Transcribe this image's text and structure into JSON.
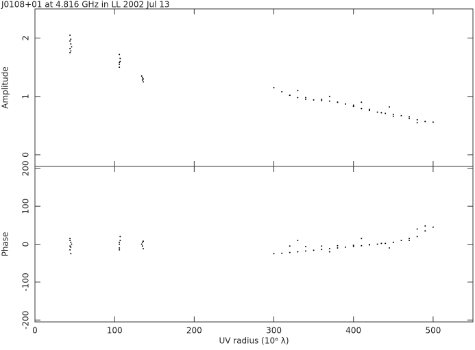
{
  "chart_data": [
    {
      "type": "scatter",
      "title": "J0108+01 at 4.816 GHz in LL  2002 Jul 13",
      "ylabel": "Amplitude",
      "color": "#000000",
      "xlim": [
        0,
        550
      ],
      "xticks": [
        0,
        100,
        200,
        300,
        400,
        500
      ],
      "ylim": [
        -0.2,
        2.5
      ],
      "yticks": [
        0,
        1,
        2
      ],
      "x": [
        44,
        44,
        45,
        45,
        44,
        46,
        45,
        44,
        106,
        106,
        107,
        106,
        106,
        107,
        135,
        135,
        136,
        136,
        134,
        300,
        310,
        320,
        330,
        340,
        350,
        360,
        370,
        380,
        390,
        400,
        410,
        420,
        430,
        440,
        450,
        460,
        470,
        480,
        490,
        500,
        320,
        340,
        360,
        380,
        400,
        420,
        435,
        450,
        470,
        490,
        330,
        370,
        410,
        445,
        480
      ],
      "values": [
        1.75,
        1.82,
        1.9,
        1.98,
        2.05,
        1.85,
        1.78,
        1.95,
        1.5,
        1.58,
        1.65,
        1.72,
        1.55,
        1.6,
        1.28,
        1.32,
        1.25,
        1.3,
        1.35,
        1.15,
        1.08,
        1.02,
        0.98,
        0.95,
        0.94,
        0.93,
        0.92,
        0.9,
        0.87,
        0.83,
        0.79,
        0.76,
        0.73,
        0.71,
        0.69,
        0.67,
        0.65,
        0.6,
        0.57,
        0.56,
        1.02,
        0.98,
        0.95,
        0.9,
        0.85,
        0.78,
        0.72,
        0.66,
        0.62,
        0.57,
        1.1,
        1.0,
        0.9,
        0.82,
        0.55
      ]
    },
    {
      "type": "scatter",
      "ylabel": "Phase",
      "xlabel": "UV radius  (10⁶ λ)",
      "color": "#000000",
      "xlim": [
        0,
        550
      ],
      "xticks": [
        0,
        100,
        200,
        300,
        400,
        500
      ],
      "ylim": [
        -205,
        205
      ],
      "yticks": [
        -200,
        -100,
        0,
        100,
        200
      ],
      "x": [
        44,
        44,
        45,
        45,
        44,
        46,
        45,
        44,
        106,
        106,
        107,
        106,
        106,
        107,
        135,
        135,
        136,
        136,
        134,
        300,
        310,
        320,
        330,
        340,
        350,
        360,
        370,
        380,
        390,
        400,
        410,
        420,
        430,
        440,
        450,
        460,
        470,
        480,
        490,
        500,
        320,
        340,
        360,
        380,
        400,
        420,
        435,
        450,
        470,
        490,
        330,
        370,
        410,
        445,
        480
      ],
      "values": [
        -5,
        -15,
        5,
        -25,
        10,
        0,
        -8,
        15,
        -10,
        5,
        20,
        -15,
        0,
        10,
        -5,
        5,
        -12,
        8,
        0,
        -25,
        -24,
        -22,
        -20,
        -18,
        -16,
        -14,
        -12,
        -10,
        -8,
        -6,
        -4,
        -2,
        0,
        2,
        5,
        10,
        15,
        20,
        35,
        45,
        -5,
        -6,
        -5,
        -4,
        -3,
        -1,
        2,
        5,
        10,
        48,
        10,
        -20,
        15,
        -10,
        40
      ]
    }
  ]
}
